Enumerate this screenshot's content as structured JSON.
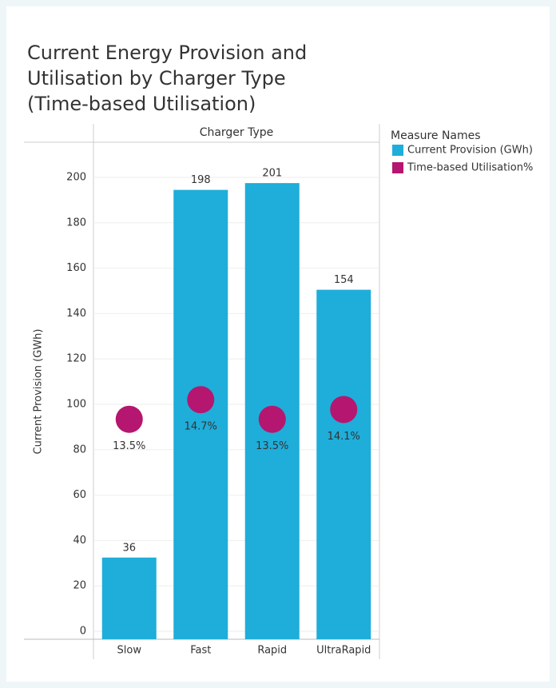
{
  "chart_data": {
    "type": "bar",
    "title": [
      "Current Energy Provision and",
      "Utilisation by Charger Type",
      "(Time-based Utilisation)"
    ],
    "header": "Charger Type",
    "y_label": "Current Provision (GWh)",
    "legend_title": "Measure Names",
    "categories": [
      "Slow",
      "Fast",
      "Rapid",
      "UltraRapid"
    ],
    "series": [
      {
        "name": "Current Provision (GWh)",
        "color": "#1fadd9",
        "type": "bar",
        "values": [
          36,
          198,
          201,
          154
        ]
      },
      {
        "name": "Time-based Utilisation%",
        "color": "#b5166f",
        "type": "circle",
        "axis": "y2",
        "values": [
          13.5,
          14.7,
          13.5,
          14.1
        ],
        "value_labels": [
          "13.5%",
          "14.7%",
          "13.5%",
          "14.1%"
        ]
      }
    ],
    "ylim": [
      0,
      219
    ],
    "yticks": [
      0,
      20,
      40,
      60,
      80,
      100,
      120,
      140,
      160,
      180,
      200
    ],
    "y2lim": [
      0,
      30.5
    ],
    "grid": true
  }
}
